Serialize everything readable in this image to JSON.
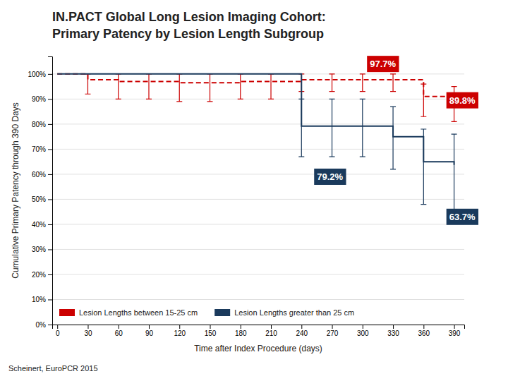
{
  "chart_data": {
    "type": "step",
    "title": "IN.PACT Global Long Lesion Imaging Cohort:",
    "subtitle": "Primary Patency by Lesion Length Subgroup",
    "xlabel": "Time after Index Procedure (days)",
    "ylabel": "Cumulative Primary Patency through 390 Days",
    "source": "Scheinert, EuroPCR 2015",
    "x": [
      0,
      30,
      60,
      90,
      120,
      150,
      180,
      210,
      240,
      270,
      300,
      330,
      360,
      390
    ],
    "series": [
      {
        "name": "Lesion Lengths between 15-25 cm",
        "color": "#cc0000",
        "line_style": "dashed",
        "values": [
          100,
          97.7,
          97.0,
          97.0,
          96.5,
          96.5,
          97.0,
          97.0,
          97.7,
          97.7,
          97.7,
          97.7,
          91.0,
          89.8
        ],
        "ci_upper": [
          null,
          100,
          100,
          100,
          100,
          100,
          100,
          100,
          100,
          100,
          100,
          100,
          96,
          95
        ],
        "ci_lower": [
          null,
          92,
          90,
          90,
          89,
          89,
          90,
          90,
          93,
          93,
          93,
          93,
          83,
          81
        ]
      },
      {
        "name": "Lesion Lengths greater than 25 cm",
        "color": "#1a3a5c",
        "line_style": "solid",
        "values": [
          100,
          100,
          100,
          100,
          100,
          100,
          100,
          100,
          79.2,
          79.2,
          79.2,
          75.0,
          65.0,
          63.7
        ],
        "ci_upper": [
          null,
          null,
          null,
          null,
          null,
          null,
          null,
          null,
          90,
          90,
          90,
          87,
          78,
          76
        ],
        "ci_lower": [
          null,
          null,
          null,
          null,
          null,
          null,
          null,
          null,
          67,
          67,
          67,
          62,
          48,
          46
        ]
      }
    ],
    "xlim": [
      -5,
      400
    ],
    "xticks": [
      0,
      30,
      60,
      90,
      120,
      150,
      180,
      210,
      240,
      270,
      300,
      330,
      360,
      390
    ],
    "ylim": [
      0,
      107
    ],
    "yticks": [
      {
        "value": 0,
        "label": "0%"
      },
      {
        "value": 10,
        "label": "10%"
      },
      {
        "value": 20,
        "label": "20%"
      },
      {
        "value": 30,
        "label": "30%"
      },
      {
        "value": 40,
        "label": "40%"
      },
      {
        "value": 50,
        "label": "50%"
      },
      {
        "value": 60,
        "label": "60%"
      },
      {
        "value": 70,
        "label": "70%"
      },
      {
        "value": 80,
        "label": "80%"
      },
      {
        "value": 90,
        "label": "90%"
      },
      {
        "value": 100,
        "label": "100%"
      }
    ],
    "grid": true,
    "legend": "lower left",
    "annotations": [
      {
        "text": "97.7%",
        "x": 320,
        "y": 104,
        "color": "#cc0000"
      },
      {
        "text": "89.8%",
        "x": 398,
        "y": 89.5,
        "color": "#cc0000"
      },
      {
        "text": "79.2%",
        "x": 268,
        "y": 59,
        "color": "#1a3a5c"
      },
      {
        "text": "63.7%",
        "x": 398,
        "y": 43,
        "color": "#1a3a5c"
      }
    ]
  }
}
